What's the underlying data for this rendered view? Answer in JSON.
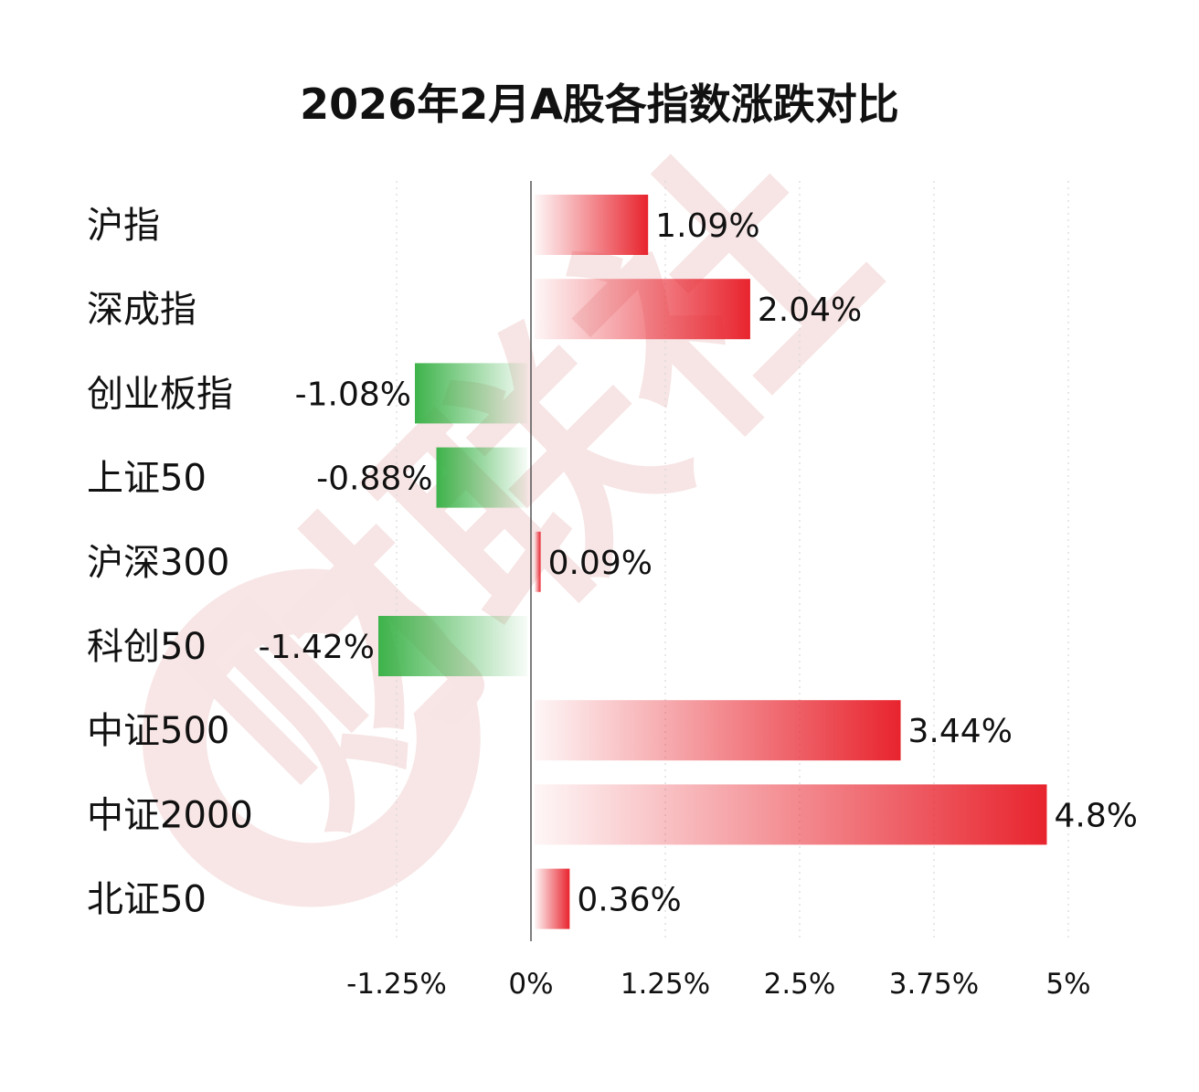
{
  "chart_data": {
    "type": "bar",
    "orientation": "horizontal",
    "title": "2026年2月A股各指数涨跌对比",
    "categories": [
      "沪指",
      "深成指",
      "创业板指",
      "上证50",
      "沪深300",
      "科创50",
      "中证500",
      "中证2000",
      "北证50"
    ],
    "values": [
      1.09,
      2.04,
      -1.08,
      -0.88,
      0.09,
      -1.42,
      3.44,
      4.8,
      0.36
    ],
    "value_labels": [
      "1.09%",
      "2.04%",
      "-1.08%",
      "-0.88%",
      "0.09%",
      "-1.42%",
      "3.44%",
      "4.8%",
      "0.36%"
    ],
    "x_ticks": [
      -1.25,
      0,
      1.25,
      2.5,
      3.75,
      5
    ],
    "x_tick_labels": [
      "-1.25%",
      "0%",
      "1.25%",
      "2.5%",
      "3.75%",
      "5%"
    ],
    "xlim": [
      -2.5,
      5.0
    ],
    "grid": "vertical-dotted",
    "colors": {
      "positive": "#e8242e",
      "negative": "#3db34a",
      "axis": "#555555",
      "grid": "#d9d9d9",
      "text": "#111111",
      "watermark": "#f7e4e4"
    }
  },
  "watermark": {
    "text": "财联社"
  }
}
